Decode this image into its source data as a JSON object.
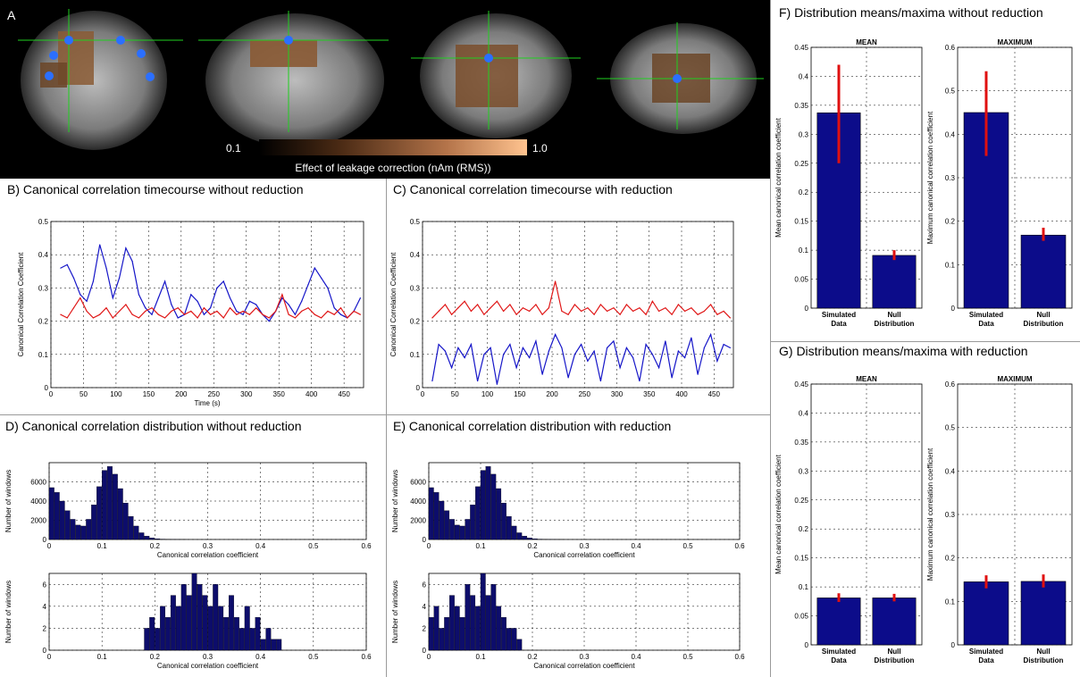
{
  "panelA": {
    "letter": "A",
    "colorbar_min": "0.1",
    "colorbar_max": "1.0",
    "colorbar_label": "Effect of leakage correction (nAm (RMS))"
  },
  "titles": {
    "B": "B) Canonical correlation timecourse without reduction",
    "C": "C) Canonical correlation timecourse with reduction",
    "D": "D) Canonical correlation distribution without reduction",
    "E": "E) Canonical correlation distribution with reduction",
    "F": "F) Distribution means/maxima without reduction",
    "G": "G) Distribution means/maxima with reduction"
  },
  "chart_data": [
    {
      "id": "B",
      "type": "line",
      "xlabel": "Time (s)",
      "ylabel": "Canonical Correlation Coefficient",
      "xlim": [
        0,
        480
      ],
      "ylim": [
        0,
        0.5
      ],
      "xticks": [
        0,
        50,
        100,
        150,
        200,
        250,
        300,
        350,
        400,
        450
      ],
      "yticks": [
        0,
        0.1,
        0.2,
        0.3,
        0.4,
        0.5
      ],
      "grid": true,
      "series": [
        {
          "color": "#1515c8",
          "x": [
            15,
            25,
            35,
            45,
            55,
            65,
            75,
            85,
            95,
            105,
            115,
            125,
            135,
            145,
            155,
            165,
            175,
            185,
            195,
            205,
            215,
            225,
            235,
            245,
            255,
            265,
            275,
            285,
            295,
            305,
            315,
            325,
            335,
            345,
            355,
            365,
            375,
            385,
            395,
            405,
            415,
            425,
            435,
            445,
            455,
            465,
            475
          ],
          "values": [
            0.36,
            0.37,
            0.33,
            0.28,
            0.26,
            0.32,
            0.43,
            0.36,
            0.27,
            0.33,
            0.42,
            0.38,
            0.28,
            0.24,
            0.22,
            0.27,
            0.32,
            0.25,
            0.21,
            0.22,
            0.28,
            0.26,
            0.22,
            0.24,
            0.3,
            0.32,
            0.27,
            0.23,
            0.22,
            0.26,
            0.25,
            0.22,
            0.2,
            0.23,
            0.27,
            0.25,
            0.22,
            0.26,
            0.31,
            0.36,
            0.33,
            0.3,
            0.24,
            0.22,
            0.21,
            0.23,
            0.27
          ]
        },
        {
          "color": "#e01818",
          "x": [
            15,
            25,
            35,
            45,
            55,
            65,
            75,
            85,
            95,
            105,
            115,
            125,
            135,
            145,
            155,
            165,
            175,
            185,
            195,
            205,
            215,
            225,
            235,
            245,
            255,
            265,
            275,
            285,
            295,
            305,
            315,
            325,
            335,
            345,
            355,
            365,
            375,
            385,
            395,
            405,
            415,
            425,
            435,
            445,
            455,
            465,
            475
          ],
          "values": [
            0.22,
            0.21,
            0.24,
            0.27,
            0.23,
            0.21,
            0.22,
            0.24,
            0.21,
            0.23,
            0.25,
            0.22,
            0.21,
            0.23,
            0.24,
            0.22,
            0.21,
            0.23,
            0.24,
            0.22,
            0.23,
            0.21,
            0.24,
            0.22,
            0.23,
            0.21,
            0.24,
            0.22,
            0.23,
            0.22,
            0.24,
            0.22,
            0.21,
            0.23,
            0.28,
            0.22,
            0.21,
            0.23,
            0.24,
            0.22,
            0.21,
            0.23,
            0.22,
            0.24,
            0.21,
            0.23,
            0.22
          ]
        }
      ]
    },
    {
      "id": "C",
      "type": "line",
      "xlabel": "",
      "ylabel": "Canonical Correlation Coefficient",
      "xlim": [
        0,
        480
      ],
      "ylim": [
        0,
        0.5
      ],
      "xticks": [
        0,
        50,
        100,
        150,
        200,
        250,
        300,
        350,
        400,
        450
      ],
      "yticks": [
        0,
        0.1,
        0.2,
        0.3,
        0.4,
        0.5
      ],
      "grid": true,
      "series": [
        {
          "color": "#e01818",
          "x": [
            15,
            25,
            35,
            45,
            55,
            65,
            75,
            85,
            95,
            105,
            115,
            125,
            135,
            145,
            155,
            165,
            175,
            185,
            195,
            205,
            215,
            225,
            235,
            245,
            255,
            265,
            275,
            285,
            295,
            305,
            315,
            325,
            335,
            345,
            355,
            365,
            375,
            385,
            395,
            405,
            415,
            425,
            435,
            445,
            455,
            465,
            475
          ],
          "values": [
            0.21,
            0.23,
            0.25,
            0.22,
            0.24,
            0.26,
            0.23,
            0.25,
            0.22,
            0.24,
            0.26,
            0.23,
            0.25,
            0.22,
            0.24,
            0.23,
            0.25,
            0.22,
            0.24,
            0.32,
            0.23,
            0.22,
            0.25,
            0.23,
            0.24,
            0.22,
            0.25,
            0.23,
            0.24,
            0.22,
            0.25,
            0.23,
            0.24,
            0.22,
            0.26,
            0.23,
            0.24,
            0.22,
            0.25,
            0.23,
            0.24,
            0.22,
            0.23,
            0.25,
            0.22,
            0.23,
            0.21
          ]
        },
        {
          "color": "#1515c8",
          "x": [
            15,
            25,
            35,
            45,
            55,
            65,
            75,
            85,
            95,
            105,
            115,
            125,
            135,
            145,
            155,
            165,
            175,
            185,
            195,
            205,
            215,
            225,
            235,
            245,
            255,
            265,
            275,
            285,
            295,
            305,
            315,
            325,
            335,
            345,
            355,
            365,
            375,
            385,
            395,
            405,
            415,
            425,
            435,
            445,
            455,
            465,
            475
          ],
          "values": [
            0.02,
            0.13,
            0.11,
            0.06,
            0.12,
            0.09,
            0.13,
            0.02,
            0.1,
            0.12,
            0.01,
            0.1,
            0.13,
            0.06,
            0.12,
            0.09,
            0.14,
            0.04,
            0.11,
            0.16,
            0.12,
            0.03,
            0.1,
            0.13,
            0.08,
            0.11,
            0.02,
            0.12,
            0.14,
            0.06,
            0.12,
            0.09,
            0.02,
            0.13,
            0.1,
            0.06,
            0.14,
            0.03,
            0.11,
            0.09,
            0.15,
            0.04,
            0.12,
            0.16,
            0.08,
            0.13,
            0.12
          ]
        }
      ]
    },
    {
      "id": "D-top",
      "type": "bar",
      "xlabel": "Canonical correlation coefficient",
      "ylabel": "Number of windows",
      "xlim": [
        0,
        0.6
      ],
      "ylim": [
        0,
        8000
      ],
      "xticks": [
        0,
        0.1,
        0.2,
        0.3,
        0.4,
        0.5,
        0.6
      ],
      "yticks": [
        0,
        2000,
        4000,
        6000
      ],
      "grid": true,
      "bin_starts": [
        0.0,
        0.01,
        0.02,
        0.03,
        0.04,
        0.05,
        0.06,
        0.07,
        0.08,
        0.09,
        0.1,
        0.11,
        0.12,
        0.13,
        0.14,
        0.15,
        0.16,
        0.17,
        0.18,
        0.19,
        0.2,
        0.21,
        0.22,
        0.23,
        0.24,
        0.25
      ],
      "values": [
        5400,
        4900,
        4000,
        3000,
        2100,
        1500,
        1400,
        2100,
        3600,
        5500,
        7200,
        7600,
        6800,
        5300,
        3800,
        2400,
        1400,
        700,
        350,
        160,
        80,
        40,
        20,
        10,
        5,
        2
      ]
    },
    {
      "id": "D-bottom",
      "type": "bar",
      "xlabel": "Canonical correlation coefficient",
      "ylabel": "Number of windows",
      "xlim": [
        0,
        0.6
      ],
      "ylim": [
        0,
        7
      ],
      "xticks": [
        0,
        0.1,
        0.2,
        0.3,
        0.4,
        0.5,
        0.6
      ],
      "yticks": [
        0,
        2,
        4,
        6
      ],
      "grid": true,
      "bin_starts": [
        0.18,
        0.19,
        0.2,
        0.21,
        0.22,
        0.23,
        0.24,
        0.25,
        0.26,
        0.27,
        0.28,
        0.29,
        0.3,
        0.31,
        0.32,
        0.33,
        0.34,
        0.35,
        0.36,
        0.37,
        0.38,
        0.39,
        0.4,
        0.41,
        0.42,
        0.43
      ],
      "values": [
        2,
        3,
        2,
        4,
        3,
        5,
        4,
        6,
        5,
        7,
        6,
        5,
        4,
        6,
        4,
        3,
        5,
        3,
        2,
        4,
        2,
        3,
        1,
        2,
        1,
        1
      ]
    },
    {
      "id": "E-top",
      "type": "bar",
      "xlabel": "Canonical correlation coefficient",
      "ylabel": "Number of windows",
      "xlim": [
        0,
        0.6
      ],
      "ylim": [
        0,
        8000
      ],
      "xticks": [
        0,
        0.1,
        0.2,
        0.3,
        0.4,
        0.5,
        0.6
      ],
      "yticks": [
        0,
        2000,
        4000,
        6000
      ],
      "grid": true,
      "bin_starts": [
        0.0,
        0.01,
        0.02,
        0.03,
        0.04,
        0.05,
        0.06,
        0.07,
        0.08,
        0.09,
        0.1,
        0.11,
        0.12,
        0.13,
        0.14,
        0.15,
        0.16,
        0.17,
        0.18,
        0.19,
        0.2,
        0.21,
        0.22,
        0.23,
        0.24,
        0.25
      ],
      "values": [
        5400,
        4900,
        4000,
        3000,
        2100,
        1500,
        1400,
        2100,
        3600,
        5500,
        7200,
        7600,
        6800,
        5300,
        3800,
        2400,
        1400,
        700,
        350,
        160,
        80,
        40,
        20,
        10,
        5,
        2
      ]
    },
    {
      "id": "E-bottom",
      "type": "bar",
      "xlabel": "Canonical correlation coefficient",
      "ylabel": "Number of windows",
      "xlim": [
        0,
        0.6
      ],
      "ylim": [
        0,
        7
      ],
      "xticks": [
        0,
        0.1,
        0.2,
        0.3,
        0.4,
        0.5,
        0.6
      ],
      "yticks": [
        0,
        2,
        4,
        6
      ],
      "grid": true,
      "bin_starts": [
        0.0,
        0.01,
        0.02,
        0.03,
        0.04,
        0.05,
        0.06,
        0.07,
        0.08,
        0.09,
        0.1,
        0.11,
        0.12,
        0.13,
        0.14,
        0.15,
        0.16,
        0.17
      ],
      "values": [
        3,
        4,
        2,
        3,
        5,
        4,
        3,
        6,
        5,
        4,
        7,
        5,
        6,
        4,
        3,
        2,
        2,
        1
      ]
    },
    {
      "id": "F-mean",
      "type": "bar",
      "title": "MEAN",
      "ylabel": "Mean canonical correlation coefficient",
      "categories": [
        "Simulated Data",
        "Null Distribution"
      ],
      "values": [
        0.337,
        0.091
      ],
      "err_low": [
        0.25,
        0.083
      ],
      "err_high": [
        0.42,
        0.1
      ],
      "ylim": [
        0,
        0.45
      ],
      "yticks": [
        0,
        0.05,
        0.1,
        0.15,
        0.2,
        0.25,
        0.3,
        0.35,
        0.4,
        0.45
      ],
      "grid": true
    },
    {
      "id": "F-max",
      "type": "bar",
      "title": "MAXIMUM",
      "ylabel": "Maximum canonical correlation coefficient",
      "categories": [
        "Simulated Data",
        "Null Distribution"
      ],
      "values": [
        0.45,
        0.168
      ],
      "err_low": [
        0.35,
        0.155
      ],
      "err_high": [
        0.545,
        0.185
      ],
      "ylim": [
        0,
        0.6
      ],
      "yticks": [
        0,
        0.1,
        0.2,
        0.3,
        0.4,
        0.5,
        0.6
      ],
      "grid": true
    },
    {
      "id": "G-mean",
      "type": "bar",
      "title": "MEAN",
      "ylabel": "Mean canonical correlation coefficient",
      "categories": [
        "Simulated Data",
        "Null Distribution"
      ],
      "values": [
        0.081,
        0.081
      ],
      "err_low": [
        0.074,
        0.075
      ],
      "err_high": [
        0.089,
        0.088
      ],
      "ylim": [
        0,
        0.45
      ],
      "yticks": [
        0,
        0.05,
        0.1,
        0.15,
        0.2,
        0.25,
        0.3,
        0.35,
        0.4,
        0.45
      ],
      "grid": true
    },
    {
      "id": "G-max",
      "type": "bar",
      "title": "MAXIMUM",
      "ylabel": "Maximum canonical correlation coefficient",
      "categories": [
        "Simulated Data",
        "Null Distribution"
      ],
      "values": [
        0.145,
        0.146
      ],
      "err_low": [
        0.13,
        0.132
      ],
      "err_high": [
        0.16,
        0.162
      ],
      "ylim": [
        0,
        0.6
      ],
      "yticks": [
        0,
        0.1,
        0.2,
        0.3,
        0.4,
        0.5,
        0.6
      ],
      "grid": true
    }
  ]
}
